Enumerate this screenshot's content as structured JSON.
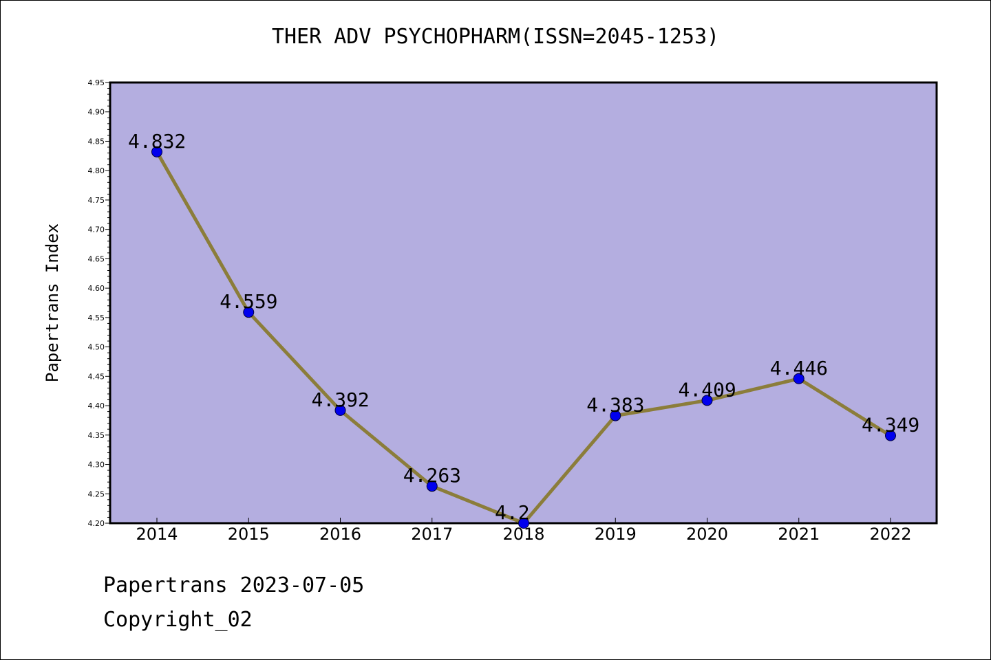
{
  "chart_data": {
    "type": "line",
    "title": "THER ADV PSYCHOPHARM(ISSN=2045-1253)",
    "xlabel": "",
    "ylabel": "Papertrans Index",
    "categories": [
      "2014",
      "2015",
      "2016",
      "2017",
      "2018",
      "2019",
      "2020",
      "2021",
      "2022"
    ],
    "series": [
      {
        "values": [
          4.832,
          4.559,
          4.392,
          4.263,
          4.2,
          4.383,
          4.409,
          4.446,
          4.349
        ]
      }
    ],
    "data_labels": [
      "4.832",
      "4.559",
      "4.392",
      "4.263",
      "4.2",
      "4.383",
      "4.409",
      "4.446",
      "4.349"
    ],
    "ylim": [
      4.2,
      4.95
    ],
    "y_tick_step": 0.05,
    "grid": false,
    "colors": {
      "plot_background": "#b4aee0",
      "line": "#8b7d3a",
      "marker": "#0000ee"
    }
  },
  "footer": {
    "line1": "Papertrans 2023-07-05",
    "line2": "Copyright_02"
  }
}
